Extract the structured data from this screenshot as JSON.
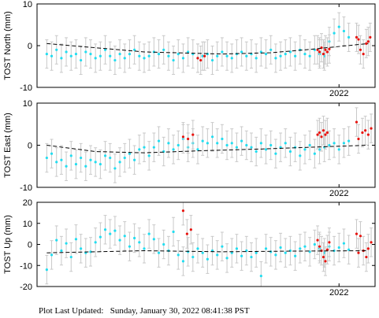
{
  "footer": {
    "label": "Plot Last Updated:",
    "timestamp": "Sunday, January 30, 2022 08:41:38 PST"
  },
  "colors": {
    "recent_points": "#e8140f",
    "historic_points": "#22ddf0",
    "error_bars": "#c9c9c9",
    "trend_line": "#000000"
  },
  "chart_data": [
    {
      "type": "scatter",
      "title": "",
      "ylabel": "TOST North (mm)",
      "xlabel": "",
      "x_tick_label": "2022",
      "ylim": [
        -10,
        10
      ],
      "yticks": [
        -10,
        0,
        10
      ],
      "xlim": [
        2018.9,
        2022.37
      ],
      "grid": false,
      "trend": {
        "x": [
          2019.0,
          2020.0,
          2020.8,
          2021.3,
          2021.7,
          2022.3
        ],
        "y": [
          0.5,
          -1.5,
          -2.0,
          -1.7,
          -0.9,
          0.5
        ]
      },
      "series": [
        {
          "color": "historic",
          "x": [
            2019.0,
            2019.05,
            2019.1,
            2019.15,
            2019.2,
            2019.25,
            2019.3,
            2019.35,
            2019.4,
            2019.45,
            2019.5,
            2019.55,
            2019.6,
            2019.65,
            2019.7,
            2019.75,
            2019.8,
            2019.85,
            2019.9,
            2019.95,
            2020.0,
            2020.05,
            2020.1,
            2020.15,
            2020.2,
            2020.25,
            2020.3,
            2020.35,
            2020.4,
            2020.45,
            2020.5,
            2020.55,
            2020.6,
            2020.65,
            2020.7,
            2020.75,
            2020.8,
            2020.85,
            2020.9,
            2020.95,
            2021.0,
            2021.05,
            2021.1,
            2021.15,
            2021.2,
            2021.25,
            2021.3,
            2021.35,
            2021.4,
            2021.45,
            2021.5,
            2021.55,
            2021.6,
            2021.65,
            2021.7,
            2021.75,
            2021.8,
            2021.85,
            2021.9,
            2021.95,
            2022.0,
            2022.05,
            2022.1
          ],
          "y": [
            -2.0,
            -2.5,
            -1.0,
            -3.0,
            -1.5,
            -2.5,
            -2.0,
            -3.5,
            -1.5,
            -2.0,
            -3.0,
            -2.5,
            -1.0,
            -2.5,
            -3.5,
            -2.0,
            -3.0,
            -2.0,
            -1.0,
            -2.5,
            -3.0,
            -2.5,
            -1.5,
            -2.0,
            -1.0,
            -2.5,
            -3.5,
            -2.0,
            -3.0,
            -1.5,
            -2.0,
            -3.0,
            -2.5,
            -2.0,
            -3.5,
            -2.5,
            -1.5,
            -2.5,
            -3.0,
            -2.0,
            -1.5,
            -2.5,
            -2.0,
            -3.0,
            -1.5,
            -2.0,
            -1.0,
            -3.0,
            -2.5,
            -2.0,
            -1.5,
            -2.5,
            -1.0,
            -2.0,
            -2.5,
            -1.0,
            -2.0,
            -2.5,
            1.0,
            3.0,
            4.5,
            3.5,
            2.0
          ]
        },
        {
          "color": "recent",
          "x": [
            2020.55,
            2020.58,
            2020.62,
            2021.78,
            2021.8,
            2021.82,
            2021.84,
            2021.86,
            2021.88,
            2021.9,
            2022.18,
            2022.2,
            2022.22,
            2022.25,
            2022.28,
            2022.3,
            2022.32
          ],
          "y": [
            -3.0,
            -3.5,
            -2.5,
            -1.0,
            -1.5,
            -0.5,
            -2.0,
            -1.0,
            -1.5,
            -0.8,
            2.0,
            1.5,
            -1.0,
            -2.0,
            0.5,
            1.0,
            2.0
          ]
        }
      ]
    },
    {
      "type": "scatter",
      "title": "",
      "ylabel": "TOST East (mm)",
      "xlabel": "",
      "x_tick_label": "2022",
      "ylim": [
        -10,
        10
      ],
      "yticks": [
        -10,
        0,
        10
      ],
      "xlim": [
        2018.9,
        2022.37
      ],
      "grid": false,
      "trend": {
        "x": [
          2019.0,
          2019.5,
          2020.0,
          2020.6,
          2021.2,
          2021.8,
          2022.3
        ],
        "y": [
          0.0,
          -1.5,
          -1.8,
          -1.3,
          -0.9,
          -0.4,
          0.0
        ]
      },
      "series": [
        {
          "color": "historic",
          "x": [
            2019.0,
            2019.05,
            2019.1,
            2019.15,
            2019.2,
            2019.25,
            2019.3,
            2019.35,
            2019.4,
            2019.45,
            2019.5,
            2019.55,
            2019.6,
            2019.65,
            2019.7,
            2019.75,
            2019.8,
            2019.85,
            2019.9,
            2019.95,
            2020.0,
            2020.05,
            2020.1,
            2020.15,
            2020.2,
            2020.25,
            2020.3,
            2020.35,
            2020.4,
            2020.45,
            2020.5,
            2020.55,
            2020.6,
            2020.65,
            2020.7,
            2020.75,
            2020.8,
            2020.85,
            2020.9,
            2020.95,
            2021.0,
            2021.05,
            2021.1,
            2021.15,
            2021.2,
            2021.25,
            2021.3,
            2021.35,
            2021.4,
            2021.45,
            2021.5,
            2021.55,
            2021.6,
            2021.65,
            2021.7,
            2021.75,
            2021.8,
            2021.85,
            2021.9,
            2021.95,
            2022.0,
            2022.05,
            2022.1
          ],
          "y": [
            -3.0,
            -2.0,
            -4.0,
            -3.5,
            -5.0,
            -2.5,
            -4.5,
            -3.0,
            -5.0,
            -3.5,
            -4.0,
            -4.5,
            -2.5,
            -3.0,
            -5.5,
            -4.0,
            -3.0,
            -2.0,
            -3.5,
            -1.0,
            -0.5,
            -2.5,
            -0.5,
            1.0,
            -1.5,
            0.5,
            -1.0,
            0.0,
            1.5,
            -0.5,
            0.5,
            -1.0,
            1.0,
            0.5,
            2.0,
            0.5,
            1.5,
            0.0,
            0.5,
            -0.5,
            1.0,
            0.0,
            -0.5,
            -1.5,
            0.5,
            -1.0,
            0.0,
            -2.0,
            -0.5,
            0.5,
            -1.5,
            -0.5,
            -2.5,
            -1.0,
            0.0,
            -2.0,
            -1.0,
            -0.5,
            0.0,
            0.5,
            -1.0,
            0.5,
            1.0
          ]
        },
        {
          "color": "recent",
          "x": [
            2020.4,
            2020.45,
            2020.5,
            2021.78,
            2021.8,
            2021.82,
            2021.84,
            2021.86,
            2021.88,
            2022.18,
            2022.2,
            2022.24,
            2022.27,
            2022.3,
            2022.33
          ],
          "y": [
            2.0,
            1.5,
            2.5,
            2.5,
            3.0,
            2.0,
            3.5,
            2.5,
            3.0,
            5.5,
            1.5,
            3.0,
            3.5,
            2.5,
            4.0
          ]
        }
      ]
    },
    {
      "type": "scatter",
      "title": "",
      "ylabel": "TOST Up (mm)",
      "xlabel": "",
      "x_tick_label": "2022",
      "ylim": [
        -20,
        20
      ],
      "yticks": [
        -20,
        -10,
        0,
        10,
        20
      ],
      "xlim": [
        2018.9,
        2022.37
      ],
      "grid": false,
      "trend": {
        "x": [
          2019.0,
          2019.5,
          2020.0,
          2020.8,
          2021.5,
          2022.3
        ],
        "y": [
          -4.0,
          -3.5,
          -3.0,
          -3.5,
          -3.2,
          -3.0
        ]
      },
      "series": [
        {
          "color": "historic",
          "x": [
            2019.0,
            2019.05,
            2019.1,
            2019.15,
            2019.2,
            2019.25,
            2019.3,
            2019.35,
            2019.4,
            2019.45,
            2019.5,
            2019.55,
            2019.6,
            2019.65,
            2019.7,
            2019.75,
            2019.8,
            2019.85,
            2019.9,
            2019.95,
            2020.0,
            2020.05,
            2020.1,
            2020.15,
            2020.2,
            2020.25,
            2020.3,
            2020.35,
            2020.4,
            2020.45,
            2020.5,
            2020.55,
            2020.6,
            2020.65,
            2020.7,
            2020.75,
            2020.8,
            2020.85,
            2020.9,
            2020.95,
            2021.0,
            2021.05,
            2021.1,
            2021.15,
            2021.2,
            2021.25,
            2021.3,
            2021.35,
            2021.4,
            2021.45,
            2021.5,
            2021.55,
            2021.6,
            2021.65,
            2021.7,
            2021.75,
            2021.8,
            2021.85,
            2021.9,
            2021.95,
            2022.0,
            2022.05,
            2022.1
          ],
          "y": [
            -12.0,
            -5.0,
            2.0,
            -3.0,
            0.5,
            -6.0,
            2.5,
            -2.0,
            -4.0,
            -3.5,
            1.0,
            3.5,
            7.0,
            5.0,
            6.5,
            2.0,
            4.0,
            -1.0,
            3.0,
            1.0,
            -2.0,
            5.0,
            2.5,
            -4.0,
            0.0,
            -3.0,
            6.0,
            -5.0,
            -8.0,
            -3.5,
            -6.0,
            -2.0,
            -4.0,
            -7.0,
            -3.0,
            -5.0,
            -1.0,
            -6.5,
            -4.0,
            -2.0,
            -5.5,
            -3.0,
            -6.0,
            -4.0,
            -15.0,
            -2.0,
            -3.5,
            -5.0,
            -1.5,
            -4.0,
            -3.0,
            -5.5,
            -2.0,
            -1.0,
            -3.5,
            0.0,
            -2.0,
            -4.0,
            -1.0,
            -3.0,
            -1.5,
            0.5,
            -2.5
          ]
        },
        {
          "color": "recent",
          "x": [
            2020.4,
            2020.44,
            2020.48,
            2021.78,
            2021.8,
            2021.82,
            2021.84,
            2021.86,
            2021.88,
            2021.9,
            2022.18,
            2022.2,
            2022.22,
            2022.25,
            2022.28,
            2022.3,
            2022.33
          ],
          "y": [
            16.0,
            5.0,
            7.0,
            2.0,
            -1.0,
            -3.0,
            -6.0,
            -8.0,
            -2.5,
            1.0,
            5.0,
            -4.0,
            4.0,
            -3.0,
            -6.0,
            -2.0,
            1.0
          ]
        }
      ]
    }
  ]
}
